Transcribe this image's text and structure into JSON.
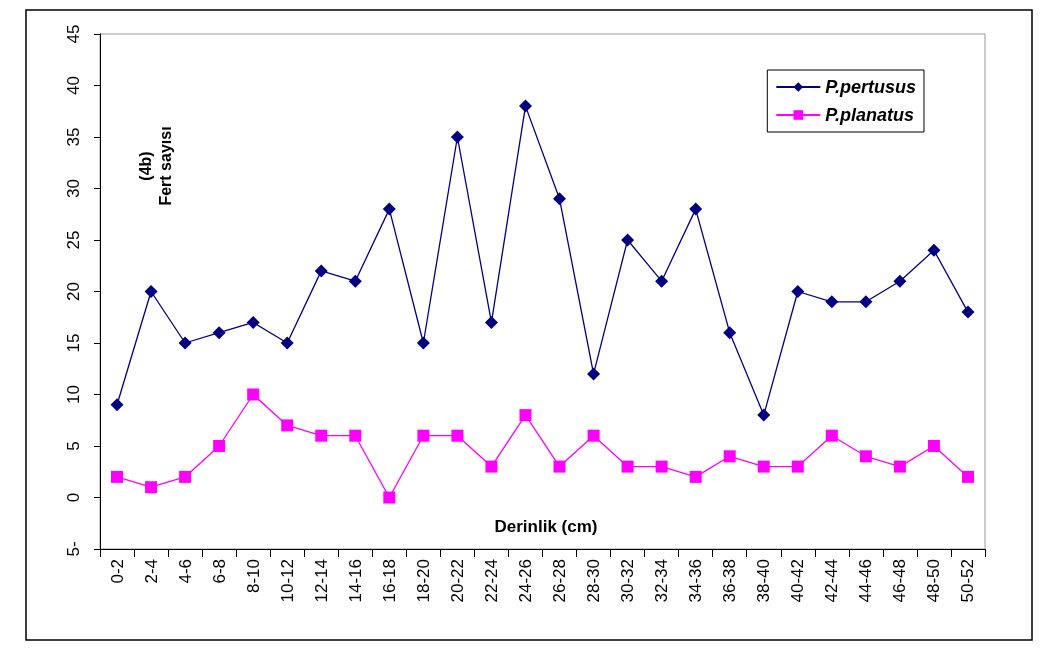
{
  "chart_data": {
    "type": "line",
    "ylabel": "Fert sayısı",
    "xlabel": "Derinlik (cm)",
    "annotations": [
      "(4b)"
    ],
    "categories": [
      "0-2",
      "2-4",
      "4-6",
      "6-8",
      "8-10",
      "10-12",
      "12-14",
      "14-16",
      "16-18",
      "18-20",
      "20-22",
      "22-24",
      "24-26",
      "26-28",
      "28-30",
      "30-32",
      "32-34",
      "34-36",
      "36-38",
      "38-40",
      "40-42",
      "42-44",
      "44-46",
      "46-48",
      "48-50",
      "50-52"
    ],
    "series": [
      {
        "name": "P.pertusus",
        "color": "#000080",
        "marker": "diamond",
        "values": [
          9,
          20,
          15,
          16,
          17,
          15,
          22,
          21,
          28,
          15,
          35,
          17,
          38,
          29,
          12,
          25,
          21,
          28,
          16,
          8,
          20,
          19,
          19,
          21,
          24,
          18
        ]
      },
      {
        "name": "P.planatus",
        "color": "#ff00ff",
        "marker": "square",
        "values": [
          2,
          1,
          2,
          5,
          10,
          7,
          6,
          6,
          0,
          6,
          6,
          3,
          8,
          3,
          6,
          3,
          3,
          2,
          4,
          3,
          3,
          6,
          4,
          3,
          5,
          2
        ]
      }
    ],
    "ylim": [
      -5,
      45
    ],
    "yticks": [
      {
        "value": -5,
        "label": "5-"
      },
      0,
      5,
      10,
      15,
      20,
      25,
      30,
      35,
      40,
      45
    ],
    "grid": false,
    "legend": "top right"
  }
}
